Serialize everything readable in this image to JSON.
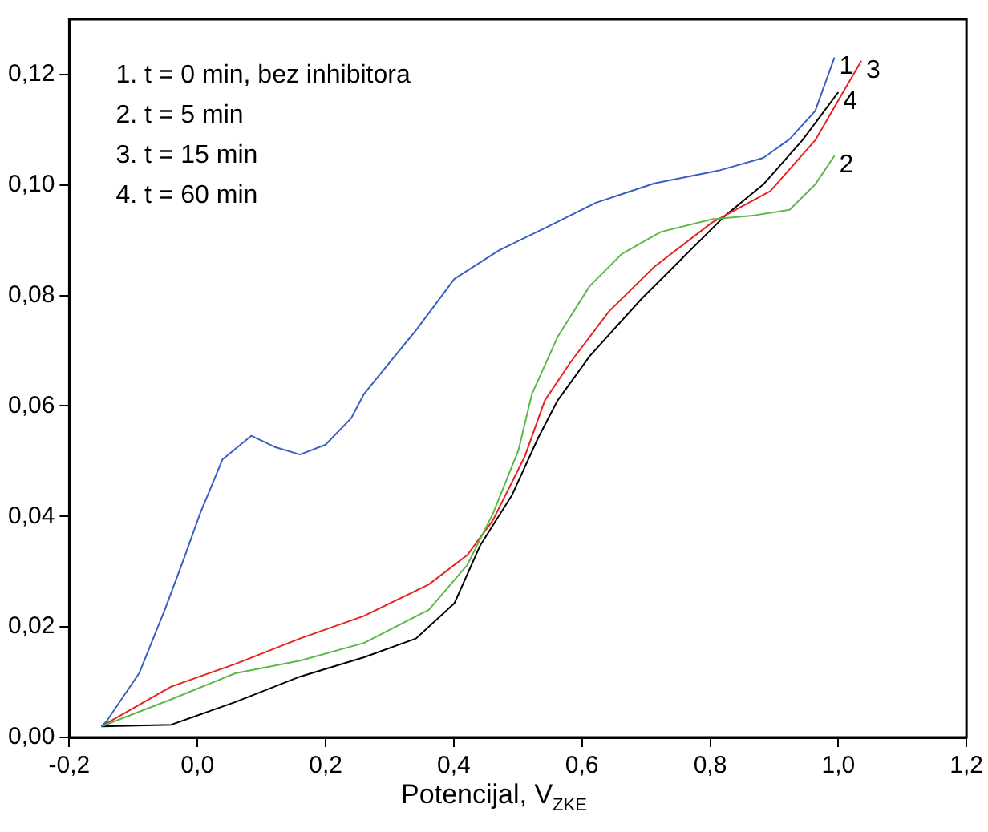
{
  "chart_data": {
    "type": "line",
    "xlabel": "Potencijal, V$_{ZKE}$",
    "xlim": [
      -0.2,
      1.2
    ],
    "xticks": [
      {
        "value": -0.2,
        "label": "-0,2"
      },
      {
        "value": 0,
        "label": "0,0"
      },
      {
        "value": 0.2,
        "label": "0,2"
      },
      {
        "value": 0.4,
        "label": "0,4"
      },
      {
        "value": 0.6,
        "label": "0,6"
      },
      {
        "value": 0.8,
        "label": "0,8"
      },
      {
        "value": 1,
        "label": "1,0"
      },
      {
        "value": 1.2,
        "label": "1,2"
      }
    ],
    "ylim": [
      0,
      0.13
    ],
    "yticks": [
      {
        "value": 0,
        "label": "0,00"
      },
      {
        "value": 0.02,
        "label": "0,02"
      },
      {
        "value": 0.04,
        "label": "0,04"
      },
      {
        "value": 0.06,
        "label": "0,06"
      },
      {
        "value": 0.08,
        "label": "0,08"
      },
      {
        "value": 0.1,
        "label": "0,10"
      },
      {
        "value": 0.12,
        "label": "0,12"
      }
    ],
    "grid": false,
    "legend": false,
    "marker": "none",
    "line_style": "solid",
    "annotations": [
      "1. t = 0 min, bez inhibitora",
      "2. t = 5 min",
      "3. t = 15 min",
      "4. t = 60 min"
    ],
    "series": [
      {
        "name": "1",
        "color": "#3b5fc0",
        "x": [
          -0.15,
          -0.142,
          -0.091,
          -0.051,
          -0.021,
          0.004,
          0.039,
          0.084,
          0.12,
          0.16,
          0.2,
          0.24,
          0.26,
          0.341,
          0.401,
          0.471,
          0.542,
          0.622,
          0.713,
          0.813,
          0.883,
          0.924,
          0.964,
          0.994
        ],
        "values": [
          0.002,
          0.0029,
          0.0116,
          0.0231,
          0.0324,
          0.0405,
          0.0503,
          0.0546,
          0.0526,
          0.0512,
          0.053,
          0.0578,
          0.0622,
          0.0737,
          0.083,
          0.0882,
          0.0922,
          0.0968,
          0.1003,
          0.1026,
          0.1049,
          0.1083,
          0.1134,
          0.1231
        ]
      },
      {
        "name": "2",
        "color": "#5cb848",
        "x": [
          -0.15,
          -0.041,
          0.059,
          0.16,
          0.26,
          0.361,
          0.421,
          0.461,
          0.501,
          0.522,
          0.562,
          0.612,
          0.662,
          0.723,
          0.803,
          0.863,
          0.924,
          0.964,
          0.994
        ],
        "values": [
          0.002,
          0.0069,
          0.0116,
          0.0139,
          0.0171,
          0.0231,
          0.0312,
          0.0405,
          0.052,
          0.0622,
          0.0725,
          0.0817,
          0.0875,
          0.0915,
          0.0938,
          0.0944,
          0.0955,
          0.1001,
          0.1053
        ]
      },
      {
        "name": "3",
        "color": "#e8231f",
        "x": [
          -0.15,
          -0.041,
          0.059,
          0.16,
          0.26,
          0.361,
          0.421,
          0.461,
          0.511,
          0.542,
          0.582,
          0.642,
          0.713,
          0.803,
          0.894,
          0.964,
          1.004,
          1.036
        ],
        "values": [
          0.002,
          0.0092,
          0.0133,
          0.0179,
          0.022,
          0.0277,
          0.033,
          0.0393,
          0.0509,
          0.061,
          0.0679,
          0.0771,
          0.0852,
          0.0932,
          0.0989,
          0.1081,
          0.1161,
          0.1225
        ]
      },
      {
        "name": "4",
        "color": "#000000",
        "x": [
          -0.15,
          -0.041,
          0.059,
          0.16,
          0.26,
          0.341,
          0.401,
          0.441,
          0.491,
          0.532,
          0.562,
          0.612,
          0.693,
          0.763,
          0.823,
          0.883,
          0.944,
          1.0
        ],
        "values": [
          0.002,
          0.0023,
          0.0064,
          0.011,
          0.0145,
          0.0179,
          0.0243,
          0.0347,
          0.0439,
          0.0543,
          0.061,
          0.069,
          0.0794,
          0.0875,
          0.0944,
          0.1001,
          0.1081,
          0.1168
        ]
      }
    ]
  }
}
